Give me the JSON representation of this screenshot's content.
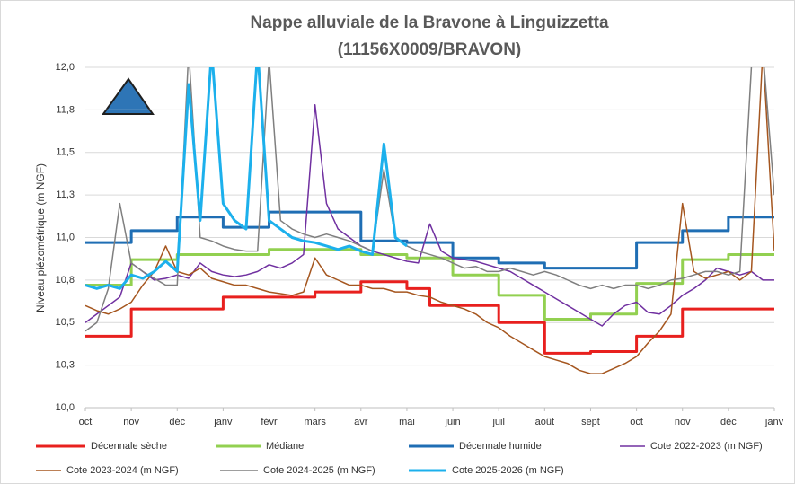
{
  "chart_data": {
    "type": "line",
    "title": "Nappe alluviale de la Bravone à Linguizzetta",
    "subtitle": "(11156X0009/BRAVON)",
    "ylabel": "Niveau piézométrique (m NGF)",
    "xlim": [
      0,
      15
    ],
    "xticks": [
      {
        "value": 0,
        "label": "oct"
      },
      {
        "value": 1,
        "label": "nov"
      },
      {
        "value": 2,
        "label": "déc"
      },
      {
        "value": 3,
        "label": "janv"
      },
      {
        "value": 4,
        "label": "févr"
      },
      {
        "value": 5,
        "label": "mars"
      },
      {
        "value": 6,
        "label": "avr"
      },
      {
        "value": 7,
        "label": "mai"
      },
      {
        "value": 8,
        "label": "juin"
      },
      {
        "value": 9,
        "label": "juil"
      },
      {
        "value": 10,
        "label": "août"
      },
      {
        "value": 11,
        "label": "sept"
      },
      {
        "value": 12,
        "label": "oct"
      },
      {
        "value": 13,
        "label": "nov"
      },
      {
        "value": 14,
        "label": "déc"
      },
      {
        "value": 15,
        "label": "janv"
      }
    ],
    "ylim": [
      10,
      12
    ],
    "yticks": [
      {
        "value": 12,
        "label": "12,0"
      },
      {
        "value": 11.75,
        "label": "11,8"
      },
      {
        "value": 11.5,
        "label": "11,5"
      },
      {
        "value": 11.25,
        "label": "11,3"
      },
      {
        "value": 11,
        "label": "11,0"
      },
      {
        "value": 10.75,
        "label": "10,8"
      },
      {
        "value": 10.5,
        "label": "10,5"
      },
      {
        "value": 10.25,
        "label": "10,3"
      },
      {
        "value": 10,
        "label": "10,0"
      }
    ],
    "grid": true,
    "legend": "bottom",
    "x": [
      0,
      0.25,
      0.5,
      0.75,
      1,
      1.25,
      1.5,
      1.75,
      2,
      2.25,
      2.5,
      2.75,
      3,
      3.25,
      3.5,
      3.75,
      4,
      4.25,
      4.5,
      4.75,
      5,
      5.25,
      5.5,
      5.75,
      6,
      6.25,
      6.5,
      6.75,
      7,
      7.25,
      7.5,
      7.75,
      8,
      8.25,
      8.5,
      8.75,
      9,
      9.25,
      9.5,
      9.75,
      10,
      10.25,
      10.5,
      10.75,
      11,
      11.25,
      11.5,
      11.75,
      12,
      12.25,
      12.5,
      12.75,
      13,
      13.25,
      13.5,
      13.75,
      14,
      14.25,
      14.5,
      14.75,
      15
    ],
    "series": [
      {
        "name": "Décennale sèche",
        "color": "#e8201e",
        "step": true,
        "values": [
          10.42,
          10.42,
          10.42,
          10.42,
          10.58,
          10.58,
          10.58,
          10.58,
          10.58,
          10.58,
          10.58,
          10.58,
          10.65,
          10.65,
          10.65,
          10.65,
          10.65,
          10.65,
          10.65,
          10.65,
          10.68,
          10.68,
          10.68,
          10.68,
          10.74,
          10.74,
          10.74,
          10.74,
          10.7,
          10.7,
          10.6,
          10.6,
          10.6,
          10.6,
          10.6,
          10.6,
          10.5,
          10.5,
          10.5,
          10.5,
          10.32,
          10.32,
          10.32,
          10.32,
          10.33,
          10.33,
          10.33,
          10.33,
          10.42,
          10.42,
          10.42,
          10.42,
          10.58,
          10.58,
          10.58,
          10.58,
          10.58,
          10.58,
          10.58,
          10.58,
          10.58
        ]
      },
      {
        "name": "Médiane",
        "color": "#92d050",
        "step": true,
        "values": [
          10.72,
          10.72,
          10.72,
          10.72,
          10.87,
          10.87,
          10.87,
          10.87,
          10.9,
          10.9,
          10.9,
          10.9,
          10.9,
          10.9,
          10.9,
          10.9,
          10.93,
          10.93,
          10.93,
          10.93,
          10.93,
          10.93,
          10.93,
          10.93,
          10.9,
          10.9,
          10.9,
          10.9,
          10.88,
          10.88,
          10.88,
          10.88,
          10.78,
          10.78,
          10.78,
          10.78,
          10.66,
          10.66,
          10.66,
          10.66,
          10.52,
          10.52,
          10.52,
          10.52,
          10.55,
          10.55,
          10.55,
          10.55,
          10.73,
          10.73,
          10.73,
          10.73,
          10.87,
          10.87,
          10.87,
          10.87,
          10.9,
          10.9,
          10.9,
          10.9,
          10.9
        ]
      },
      {
        "name": "Décennale humide",
        "color": "#1f6eb4",
        "step": true,
        "values": [
          10.97,
          10.97,
          10.97,
          10.97,
          11.04,
          11.04,
          11.04,
          11.04,
          11.12,
          11.12,
          11.12,
          11.12,
          11.06,
          11.06,
          11.06,
          11.06,
          11.15,
          11.15,
          11.15,
          11.15,
          11.15,
          11.15,
          11.15,
          11.15,
          10.98,
          10.98,
          10.98,
          10.98,
          10.97,
          10.97,
          10.97,
          10.97,
          10.88,
          10.88,
          10.88,
          10.88,
          10.85,
          10.85,
          10.85,
          10.85,
          10.82,
          10.82,
          10.82,
          10.82,
          10.82,
          10.82,
          10.82,
          10.82,
          10.97,
          10.97,
          10.97,
          10.97,
          11.04,
          11.04,
          11.04,
          11.04,
          11.12,
          11.12,
          11.12,
          11.12,
          11.12
        ]
      },
      {
        "name": "Cote 2022-2023 (m NGF)",
        "color": "#7030a0",
        "values": [
          10.5,
          10.55,
          10.6,
          10.65,
          10.85,
          10.8,
          10.75,
          10.76,
          10.78,
          10.76,
          10.85,
          10.8,
          10.78,
          10.77,
          10.78,
          10.8,
          10.84,
          10.82,
          10.85,
          10.9,
          11.78,
          11.2,
          11.05,
          11.0,
          10.95,
          10.92,
          10.9,
          10.88,
          10.86,
          10.85,
          11.08,
          10.92,
          10.88,
          10.87,
          10.86,
          10.84,
          10.82,
          10.8,
          10.76,
          10.72,
          10.68,
          10.64,
          10.6,
          10.56,
          10.52,
          10.48,
          10.55,
          10.6,
          10.62,
          10.56,
          10.55,
          10.6,
          10.66,
          10.7,
          10.75,
          10.82,
          10.8,
          10.78,
          10.8,
          10.75,
          10.75
        ]
      },
      {
        "name": "Cote 2023-2024 (m NGF)",
        "color": "#a5561f",
        "values": [
          10.6,
          10.57,
          10.55,
          10.58,
          10.62,
          10.72,
          10.8,
          10.95,
          10.8,
          10.78,
          10.82,
          10.76,
          10.74,
          10.72,
          10.72,
          10.7,
          10.68,
          10.67,
          10.66,
          10.68,
          10.88,
          10.78,
          10.75,
          10.72,
          10.72,
          10.7,
          10.7,
          10.68,
          10.68,
          10.66,
          10.65,
          10.62,
          10.6,
          10.58,
          10.55,
          10.5,
          10.47,
          10.42,
          10.38,
          10.34,
          10.3,
          10.28,
          10.26,
          10.22,
          10.2,
          10.2,
          10.23,
          10.26,
          10.3,
          10.38,
          10.45,
          10.55,
          11.2,
          10.8,
          10.76,
          10.78,
          10.8,
          10.75,
          10.8,
          12.1,
          10.92
        ]
      },
      {
        "name": "Cote 2024-2025 (m NGF)",
        "color": "#7f7f7f",
        "values": [
          10.45,
          10.5,
          10.7,
          11.2,
          10.85,
          10.8,
          10.76,
          10.72,
          10.72,
          12.1,
          11.0,
          10.98,
          10.95,
          10.93,
          10.92,
          10.92,
          12.05,
          11.1,
          11.05,
          11.02,
          11.0,
          11.02,
          11.0,
          10.98,
          10.95,
          10.92,
          11.4,
          11.0,
          10.95,
          10.92,
          10.9,
          10.88,
          10.85,
          10.82,
          10.83,
          10.8,
          10.8,
          10.82,
          10.8,
          10.78,
          10.8,
          10.78,
          10.75,
          10.72,
          10.7,
          10.72,
          10.7,
          10.72,
          10.72,
          10.7,
          10.72,
          10.75,
          10.76,
          10.78,
          10.8,
          10.8,
          10.78,
          10.8,
          12.0,
          12.1,
          11.25
        ]
      },
      {
        "name": "Cote 2025-2026 (m NGF)",
        "color": "#1cb0ec",
        "values": [
          10.72,
          10.7,
          10.72,
          10.7,
          10.78,
          10.76,
          10.8,
          10.86,
          10.8,
          11.9,
          11.1,
          12.1,
          11.2,
          11.1,
          11.05,
          12.1,
          11.1,
          11.05,
          11.0,
          10.98,
          10.97,
          10.95,
          10.93,
          10.95,
          10.92,
          10.9,
          11.55,
          11.0,
          10.95,
          null,
          null,
          null,
          null,
          null,
          null,
          null,
          null,
          null,
          null,
          null,
          null,
          null,
          null,
          null,
          null,
          null,
          null,
          null,
          null,
          null,
          null,
          null,
          null,
          null,
          null,
          null,
          null,
          null,
          null,
          null,
          null
        ]
      }
    ]
  }
}
